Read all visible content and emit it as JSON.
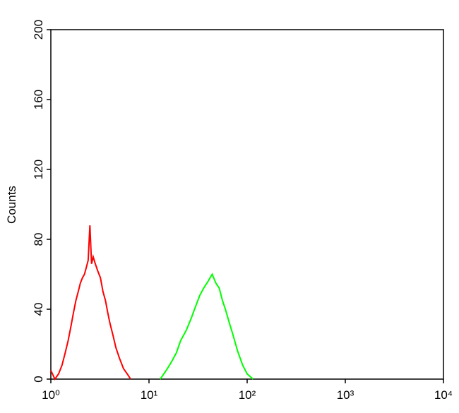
{
  "chart_data": {
    "type": "line",
    "y_label": "Counts",
    "xscale": "log",
    "xlim": [
      1,
      10000
    ],
    "xticks": [
      {
        "value": 1,
        "label": "10⁰"
      },
      {
        "value": 10,
        "label": "10¹"
      },
      {
        "value": 100,
        "label": "10²"
      },
      {
        "value": 1000,
        "label": "10³"
      },
      {
        "value": 10000,
        "label": "10⁴"
      }
    ],
    "ylim": [
      0,
      200
    ],
    "yticks": [
      0,
      40,
      80,
      120,
      160,
      200
    ],
    "series": [
      {
        "color": "#ff0000",
        "x": [
          1.0,
          1.1,
          1.2,
          1.3,
          1.4,
          1.5,
          1.6,
          1.7,
          1.8,
          1.9,
          2.0,
          2.1,
          2.2,
          2.3,
          2.4,
          2.5,
          2.6,
          2.7,
          2.8,
          3.0,
          3.2,
          3.4,
          3.6,
          3.8,
          4.0,
          4.3,
          4.6,
          5.0,
          5.5,
          6.0,
          6.5
        ],
        "values": [
          5,
          0,
          3,
          8,
          15,
          22,
          30,
          38,
          45,
          50,
          55,
          58,
          60,
          64,
          68,
          88,
          66,
          70,
          67,
          62,
          58,
          50,
          45,
          38,
          32,
          25,
          18,
          12,
          6,
          3,
          0
        ]
      },
      {
        "color": "#00ff00",
        "x": [
          13,
          15,
          17,
          19,
          21,
          24,
          27,
          30,
          33,
          36,
          40,
          44,
          48,
          52,
          56,
          60,
          66,
          72,
          80,
          90,
          100,
          115
        ],
        "values": [
          0,
          5,
          10,
          15,
          22,
          28,
          35,
          42,
          48,
          52,
          56,
          60,
          55,
          52,
          45,
          40,
          32,
          25,
          16,
          8,
          3,
          0
        ]
      }
    ]
  }
}
